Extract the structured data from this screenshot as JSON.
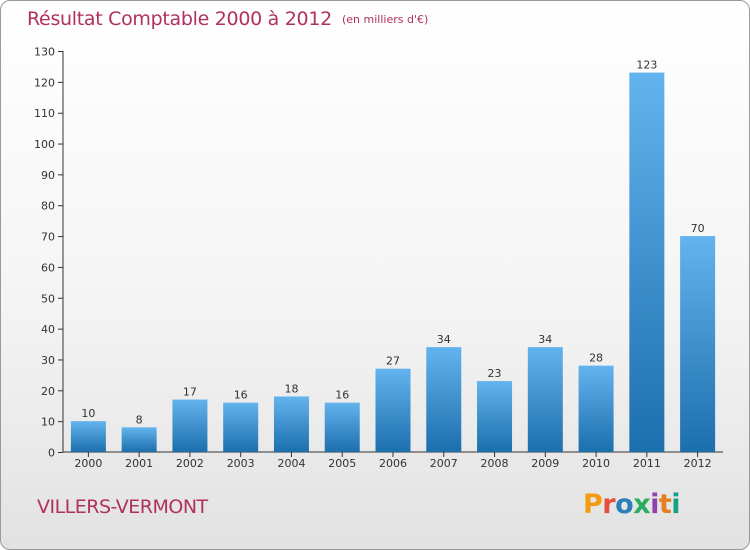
{
  "header": {
    "title": "Résultat Comptable 2000 à 2012",
    "subtitle": "(en milliers d'€)"
  },
  "footer": {
    "commune": "VILLERS-VERMONT",
    "logo_text": "Proxiti",
    "logo_colors": [
      "#f39c12",
      "#e74c3c",
      "#2980b9",
      "#27ae60",
      "#8e44ad",
      "#e67e22",
      "#16a085"
    ]
  },
  "colors": {
    "bar_light": "#63b3ee",
    "bar_dark": "#1c6fad",
    "title": "#b03060",
    "axis": "#333333"
  },
  "chart_data": {
    "type": "bar",
    "title": "Résultat Comptable 2000 à 2012",
    "subtitle": "(en milliers d'€)",
    "xlabel": "",
    "ylabel": "",
    "categories": [
      "2000",
      "2001",
      "2002",
      "2003",
      "2004",
      "2005",
      "2006",
      "2007",
      "2008",
      "2009",
      "2010",
      "2011",
      "2012"
    ],
    "values": [
      10,
      8,
      17,
      16,
      18,
      16,
      27,
      34,
      23,
      34,
      28,
      123,
      70
    ],
    "ylim": [
      0,
      130
    ],
    "yticks": [
      0,
      10,
      20,
      30,
      40,
      50,
      60,
      70,
      80,
      90,
      100,
      110,
      120,
      130
    ],
    "grid": false,
    "legend": "none"
  }
}
